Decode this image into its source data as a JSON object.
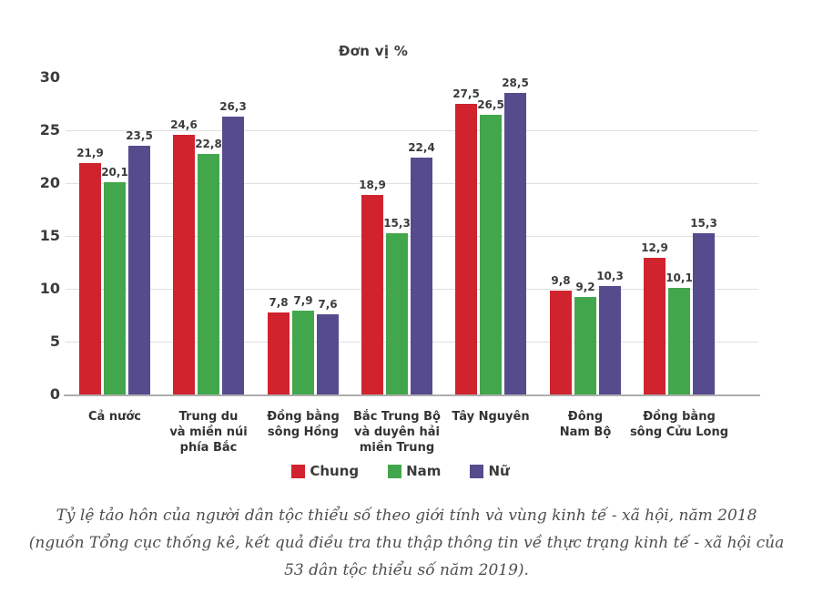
{
  "title": "Đơn vị %",
  "chart_data": {
    "type": "bar",
    "title": "Đơn vị %",
    "unit": "%",
    "categories": [
      [
        "Cả nước"
      ],
      [
        "Trung du",
        "và miền núi",
        "phía Bắc"
      ],
      [
        "Đồng bằng",
        "sông Hồng"
      ],
      [
        "Bắc Trung Bộ",
        "và duyên hải",
        "miền Trung"
      ],
      [
        "Tây Nguyên"
      ],
      [
        "Đông",
        "Nam Bộ"
      ],
      [
        "Đồng bằng",
        "sông Cửu Long"
      ]
    ],
    "series": [
      {
        "name": "Chung",
        "color": "#d0232e",
        "values": [
          21.9,
          24.6,
          7.8,
          18.9,
          27.5,
          9.8,
          12.9
        ]
      },
      {
        "name": "Nam",
        "color": "#42a74c",
        "values": [
          20.1,
          22.8,
          7.9,
          15.3,
          26.5,
          9.2,
          10.1
        ]
      },
      {
        "name": "Nữ",
        "color": "#564b8d",
        "values": [
          23.5,
          26.3,
          7.6,
          22.4,
          28.5,
          10.3,
          15.3
        ]
      }
    ],
    "yticks": [
      0,
      5,
      10,
      15,
      20,
      25,
      30
    ],
    "ylim": [
      0,
      30
    ],
    "grid": "horizontal",
    "legend_position": "bottom",
    "value_label_decimal_separator": ","
  },
  "legend": [
    {
      "label": "Chung",
      "color": "#d0232e"
    },
    {
      "label": "Nam",
      "color": "#42a74c"
    },
    {
      "label": "Nữ",
      "color": "#564b8d"
    }
  ],
  "caption": {
    "lines": [
      "Tỷ lệ tảo hôn của người dân tộc thiểu số theo giới tính và vùng kinh tế - xã hội, năm 2018",
      "(nguồn Tổng cục thống kê, kết quả điều tra thu thập thông tin về thực trạng kinh tế - xã hội của",
      "53 dân tộc thiểu số năm 2019)."
    ]
  },
  "colors": {
    "grid": "#e0e0e0",
    "axis": "#aeaeae",
    "text": "#3b3b3b",
    "caption_text": "#4e4e4e"
  }
}
